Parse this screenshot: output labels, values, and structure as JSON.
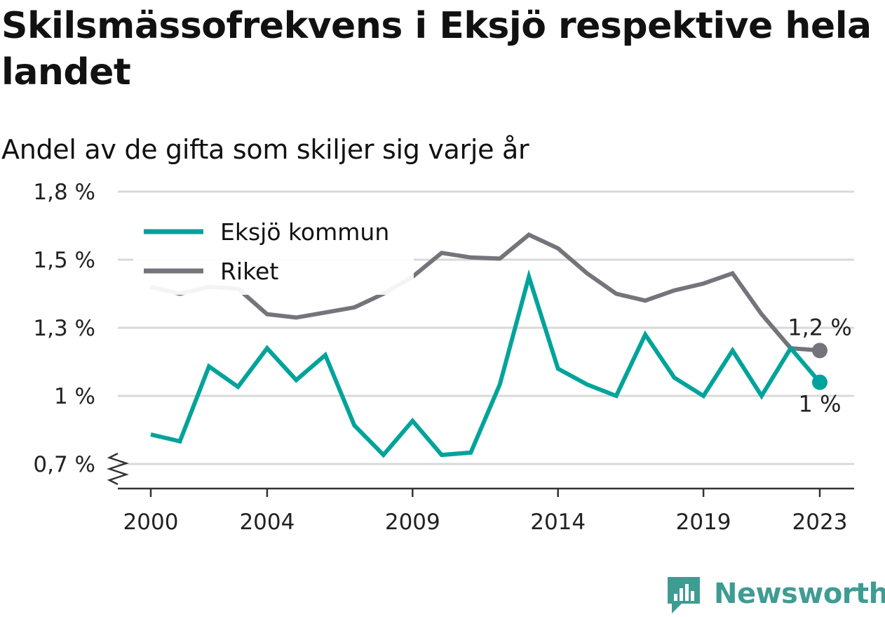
{
  "header": {
    "title": "Skilsmässofrekvens i Eksjö respektive hela landet",
    "subtitle": "Andel av de gifta som skiljer sig varje år"
  },
  "chart_data": {
    "type": "line",
    "title": "Skilsmässofrekvens i Eksjö respektive hela landet",
    "subtitle": "Andel av de gifta som skiljer sig varje år",
    "xlabel": "",
    "ylabel": "",
    "x": [
      2000,
      2001,
      2002,
      2003,
      2004,
      2005,
      2006,
      2007,
      2008,
      2009,
      2010,
      2011,
      2012,
      2013,
      2014,
      2015,
      2016,
      2017,
      2018,
      2019,
      2020,
      2021,
      2022,
      2023
    ],
    "x_ticks": [
      2000,
      2004,
      2009,
      2014,
      2019,
      2023
    ],
    "x_tick_labels": [
      "2000",
      "2004",
      "2009",
      "2014",
      "2019",
      "2023"
    ],
    "y_ticks": [
      0.7,
      1.0,
      1.3,
      1.5,
      1.8
    ],
    "y_tick_labels": [
      "0,7 %",
      "1 %",
      "1,3 %",
      "1,5 %",
      "1,8 %"
    ],
    "ylim": [
      0.64,
      1.8
    ],
    "y_axis_broken": true,
    "grid": true,
    "legend_position": "top-left",
    "series": [
      {
        "name": "Eksjö kommun",
        "color": "#00a39a",
        "values": [
          0.83,
          0.8,
          1.13,
          1.04,
          1.21,
          1.07,
          1.18,
          0.87,
          0.74,
          0.89,
          0.74,
          0.75,
          1.05,
          1.45,
          1.12,
          1.05,
          1.0,
          1.27,
          1.08,
          1.0,
          1.2,
          1.0,
          1.21,
          1.06
        ],
        "end_label": "1 %"
      },
      {
        "name": "Riket",
        "color": "#75747b",
        "values": [
          1.42,
          1.4,
          1.42,
          1.415,
          1.34,
          1.33,
          1.345,
          1.36,
          1.4,
          1.45,
          1.53,
          1.51,
          1.505,
          1.61,
          1.55,
          1.46,
          1.4,
          1.38,
          1.41,
          1.43,
          1.46,
          1.34,
          1.21,
          1.2
        ],
        "end_label": "1,2 %"
      }
    ]
  },
  "logo": {
    "text": "Newsworthy",
    "color": "#3f9c93"
  }
}
